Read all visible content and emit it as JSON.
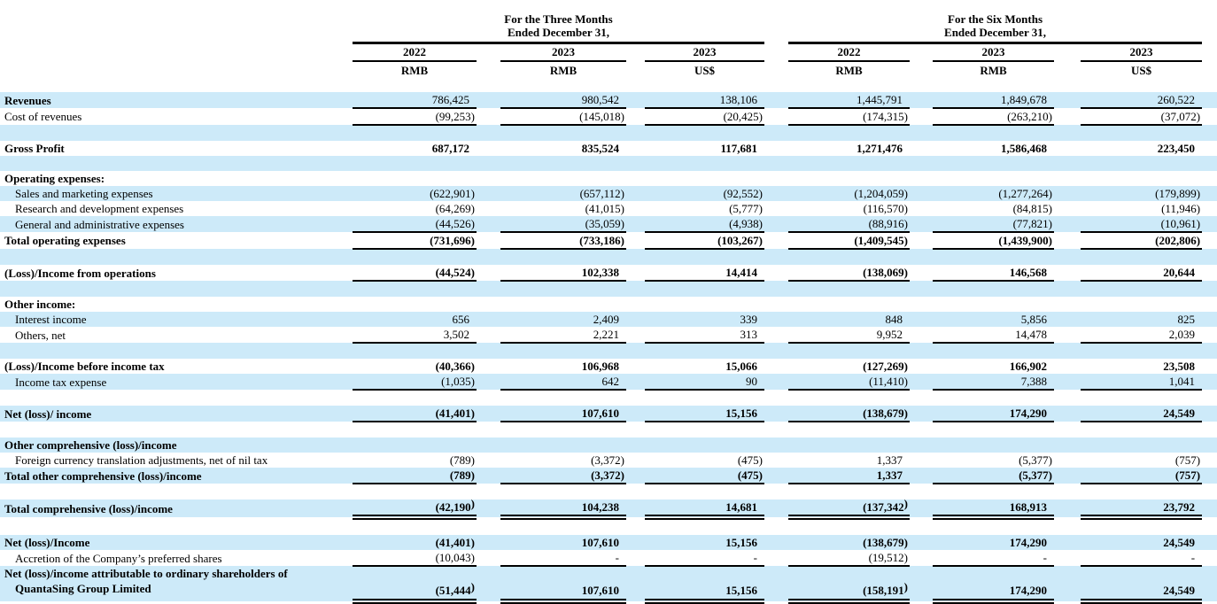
{
  "colors": {
    "row_highlight": "#cdeaf9",
    "rule_color": "#000000",
    "text_color": "#000000",
    "page_background": "#ffffff"
  },
  "table": {
    "header": {
      "groups": [
        {
          "line1": "For the Three Months",
          "line2": "Ended December 31,"
        },
        {
          "line1": "For the Six Months",
          "line2": "Ended December 31,"
        }
      ],
      "columns": [
        {
          "year": "2022",
          "currency": "RMB"
        },
        {
          "year": "2023",
          "currency": "RMB"
        },
        {
          "year": "2023",
          "currency": "US$"
        },
        {
          "year": "2022",
          "currency": "RMB"
        },
        {
          "year": "2023",
          "currency": "RMB"
        },
        {
          "year": "2023",
          "currency": "US$"
        }
      ]
    },
    "rows": [
      {
        "label": "Revenues",
        "bold": true,
        "bg": "hl",
        "rule": "single",
        "values": [
          "786,425",
          "980,542",
          "138,106",
          "1,445,791",
          "1,849,678",
          "260,522"
        ]
      },
      {
        "label": "Cost of revenues",
        "bg": "plain",
        "rule": "single",
        "values": [
          "(99,253)",
          "(145,018)",
          "(20,425)",
          "(174,315)",
          "(263,210)",
          "(37,072)"
        ]
      },
      {
        "blank": true,
        "bg": "hl"
      },
      {
        "label": "Gross Profit",
        "bold": true,
        "values_bold": true,
        "bg": "plain",
        "values": [
          "687,172",
          "835,524",
          "117,681",
          "1,271,476",
          "1,586,468",
          "223,450"
        ]
      },
      {
        "blank": true,
        "bg": "hl"
      },
      {
        "label": "Operating expenses:",
        "bold": true,
        "bg": "plain"
      },
      {
        "label": "Sales and marketing expenses",
        "indent": 1,
        "bg": "hl",
        "values": [
          "(622,901)",
          "(657,112)",
          "(92,552)",
          "(1,204,059)",
          "(1,277,264)",
          "(179,899)"
        ]
      },
      {
        "label": "Research and development expenses",
        "indent": 1,
        "bg": "plain",
        "values": [
          "(64,269)",
          "(41,015)",
          "(5,777)",
          "(116,570)",
          "(84,815)",
          "(11,946)"
        ]
      },
      {
        "label": "General and administrative expenses",
        "indent": 1,
        "bg": "hl",
        "rule": "single",
        "values": [
          "(44,526)",
          "(35,059)",
          "(4,938)",
          "(88,916)",
          "(77,821)",
          "(10,961)"
        ]
      },
      {
        "label": "Total operating expenses",
        "bold": true,
        "values_bold": true,
        "bg": "plain",
        "rule": "single",
        "values": [
          "(731,696)",
          "(733,186)",
          "(103,267)",
          "(1,409,545)",
          "(1,439,900)",
          "(202,806)"
        ]
      },
      {
        "blank": true,
        "bg": "hl"
      },
      {
        "label": "(Loss)/Income from operations",
        "bold": true,
        "values_bold": true,
        "bg": "plain",
        "rule": "single",
        "values": [
          "(44,524)",
          "102,338",
          "14,414",
          "(138,069)",
          "146,568",
          "20,644"
        ]
      },
      {
        "blank": true,
        "bg": "hl"
      },
      {
        "label": "Other income:",
        "bold": true,
        "bg": "plain"
      },
      {
        "label": "Interest income",
        "indent": 1,
        "bg": "hl",
        "values": [
          "656",
          "2,409",
          "339",
          "848",
          "5,856",
          "825"
        ]
      },
      {
        "label": "Others, net",
        "indent": 1,
        "bg": "plain",
        "rule": "single",
        "values": [
          "3,502",
          "2,221",
          "313",
          "9,952",
          "14,478",
          "2,039"
        ]
      },
      {
        "blank": true,
        "bg": "hl"
      },
      {
        "label": "(Loss)/Income before income tax",
        "bold": true,
        "values_bold": true,
        "bg": "plain",
        "values": [
          "(40,366)",
          "106,968",
          "15,066",
          "(127,269)",
          "166,902",
          "23,508"
        ]
      },
      {
        "label": "Income tax expense",
        "indent": 1,
        "bg": "hl",
        "rule": "single",
        "values": [
          "(1,035)",
          "642",
          "90",
          "(11,410)",
          "7,388",
          "1,041"
        ]
      },
      {
        "blank": true,
        "bg": "plain"
      },
      {
        "label": "Net (loss)/ income",
        "bold": true,
        "values_bold": true,
        "bg": "hl",
        "rule": "single",
        "values": [
          "(41,401)",
          "107,610",
          "15,156",
          "(138,679)",
          "174,290",
          "24,549"
        ]
      },
      {
        "blank": true,
        "bg": "plain"
      },
      {
        "label": "Other comprehensive (loss)/income",
        "bold": true,
        "bg": "hl"
      },
      {
        "label": "Foreign currency translation adjustments, net of nil tax",
        "indent": 1,
        "bg": "plain",
        "values": [
          "(789)",
          "(3,372)",
          "(475)",
          "1,337",
          "(5,377)",
          "(757)"
        ]
      },
      {
        "label": "Total other comprehensive (loss)/income",
        "bold": true,
        "values_bold": true,
        "bg": "hl",
        "rule": "single",
        "values": [
          "(789)",
          "(3,372)",
          "(475)",
          "1,337",
          "(5,377)",
          "(757)"
        ]
      },
      {
        "blank": true,
        "bg": "plain"
      },
      {
        "label": "Total comprehensive (loss)/income",
        "bold": true,
        "values_bold": true,
        "bg": "hl",
        "rule": "double",
        "sup_paren_cols": [
          0,
          3
        ],
        "values": [
          "(42,190)",
          "104,238",
          "14,681",
          "(137,342)",
          "168,913",
          "23,792"
        ]
      },
      {
        "blank": true,
        "bg": "plain"
      },
      {
        "label": "Net (loss)/Income",
        "bold": true,
        "values_bold": true,
        "bg": "hl",
        "values": [
          "(41,401)",
          "107,610",
          "15,156",
          "(138,679)",
          "174,290",
          "24,549"
        ]
      },
      {
        "label": "Accretion of the Company’s preferred shares",
        "indent": 1,
        "bg": "plain",
        "rule": "single",
        "values": [
          "(10,043)",
          "-",
          "-",
          "(19,512)",
          "-",
          "-"
        ]
      },
      {
        "label": "Net (loss)/income attributable to ordinary shareholders of",
        "label2": "QuantaSing Group Limited",
        "bold": true,
        "values_bold": true,
        "bg": "hl",
        "rule": "double",
        "tall": true,
        "sup_paren_cols": [
          0,
          3
        ],
        "values": [
          "(51,444)",
          "107,610",
          "15,156",
          "(158,191)",
          "174,290",
          "24,549"
        ]
      }
    ]
  }
}
